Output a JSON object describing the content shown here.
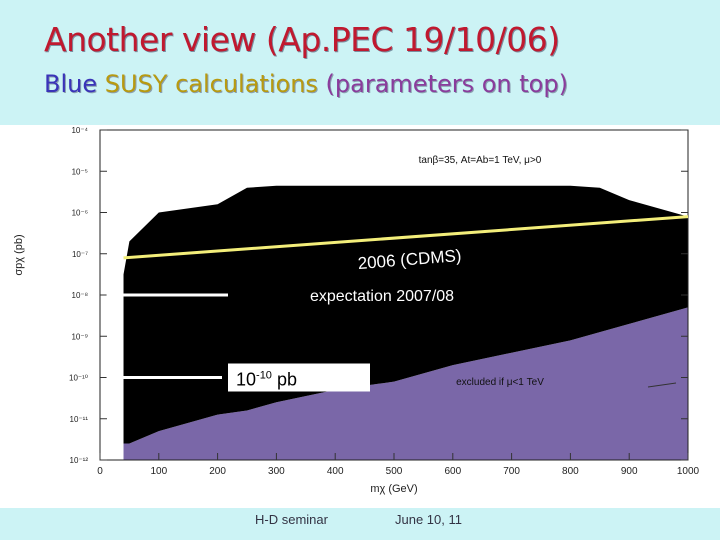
{
  "slide": {
    "title": "Another view (Ap.PEC 19/10/06)",
    "subtitle": {
      "part1": "Blue",
      "part2": "SUSY calculations",
      "part3": "(parameters on top)"
    }
  },
  "footer": {
    "left": "H-D seminar",
    "right": "June 10, 11"
  },
  "colors": {
    "title": "#c0192f",
    "subtitle_blue": "#3a33b8",
    "subtitle_yellow": "#b89a10",
    "subtitle_purple": "#8a3c9c",
    "susy_region": "#000000",
    "excluded_region": "#7a67a8",
    "cdms_line": "#f3ee7a",
    "background": "#ccf3f5"
  },
  "chart_data": {
    "type": "area",
    "xlabel": "mχ (GeV)",
    "ylabel": "σpχ (pb)",
    "xlim": [
      0,
      1000
    ],
    "ylim_log10": [
      -12,
      -4
    ],
    "yscale": "log",
    "x_ticks": [
      "0",
      "100",
      "200",
      "300",
      "400",
      "500",
      "600",
      "700",
      "800",
      "900",
      "1000"
    ],
    "y_ticks": [
      "10⁻⁴",
      "10⁻⁵",
      "10⁻⁶",
      "10⁻⁷",
      "10⁻⁸",
      "10⁻⁹",
      "10⁻¹⁰",
      "10⁻¹¹",
      "10⁻¹²"
    ],
    "parameters": "tanβ=35, At=Ab=1 TeV, μ>0",
    "series": [
      {
        "name": "",
        "x": [
          40,
          50,
          100,
          150,
          200,
          250,
          300,
          400,
          500,
          600,
          700,
          800,
          850,
          900,
          950,
          1000
        ],
        "upper_log10": [
          -7.5,
          -6.7,
          -6.0,
          -5.9,
          -5.8,
          -5.4,
          -5.35,
          -5.35,
          -5.35,
          -5.35,
          -5.35,
          -5.35,
          -5.4,
          -5.7,
          -5.9,
          -6.1
        ],
        "lower_log10": [
          -11.6,
          -11.6,
          -11.3,
          -11.1,
          -10.9,
          -10.8,
          -10.6,
          -10.3,
          -10.1,
          -9.7,
          -9.4,
          -9.1,
          -8.9,
          -8.7,
          -8.5,
          -8.3
        ]
      },
      {
        "name": "",
        "x": [
          40,
          1000
        ],
        "y_log10": [
          -7.1,
          -6.1
        ]
      }
    ],
    "annotations": {
      "cdms": "2006 (CDMS)",
      "expectation": "expectation 2007/08",
      "sensitivity_box": "10",
      "sensitivity_exp": "-10",
      "sensitivity_unit": "pb",
      "excluded": "excluded if μ<1 TeV"
    },
    "markers_log10": {
      "expectation": -8.0,
      "sensitivity": -10.0
    }
  }
}
